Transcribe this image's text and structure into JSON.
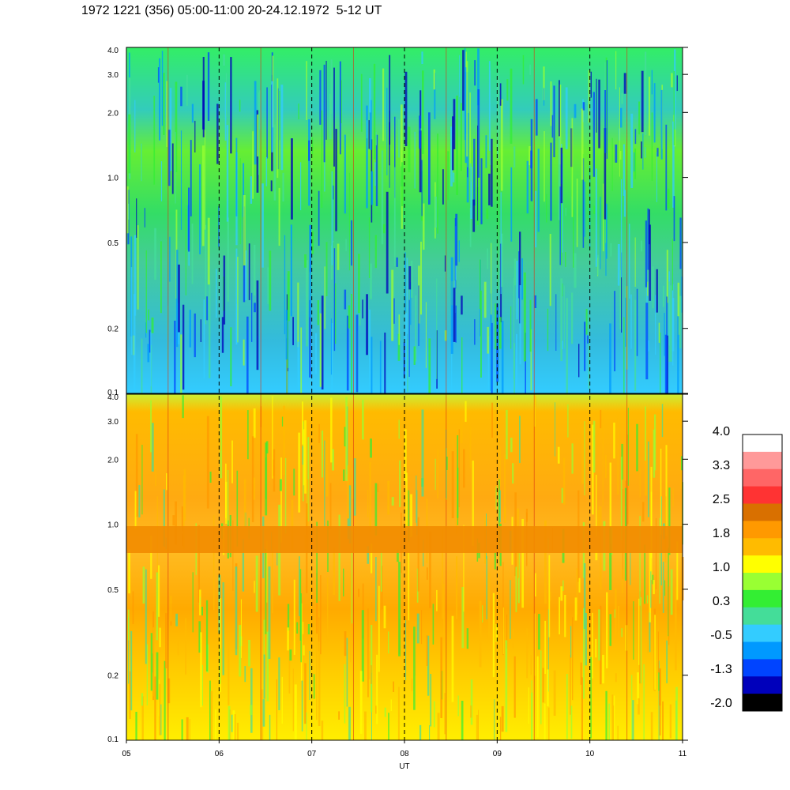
{
  "title": "1972 1221 (356) 05:00-11:00 20-24.12.1972  5-12 UT",
  "chart_data": {
    "type": "heatmap",
    "xlabel": "UT",
    "x_ticks": [
      "05",
      "06",
      "07",
      "08",
      "09",
      "10",
      "11"
    ],
    "x_range_hours": [
      5,
      11
    ],
    "dashed_vertical_lines_at_hours": [
      6,
      7,
      8,
      9,
      10
    ],
    "y_scale": "log",
    "y_range": [
      0.1,
      4.0
    ],
    "y_ticks": [
      "0.1",
      "0.2",
      "0.5",
      "1.0",
      "2.0",
      "3.0",
      "4.0"
    ],
    "panels": [
      {
        "name": "upper",
        "dominant_levels": [
          "-0.5",
          "0.3"
        ],
        "notes": "mostly cyan/green with blue streaks near 0.3-2.0"
      },
      {
        "name": "lower",
        "dominant_levels": [
          "1.0",
          "1.8"
        ],
        "band_at_y": 0.85,
        "notes": "orange/yellow with dark orange band near 0.8-0.9"
      }
    ],
    "colorbar": {
      "labels": [
        "4.0",
        "3.3",
        "2.5",
        "1.8",
        "1.0",
        "0.3",
        "-0.5",
        "-1.3",
        "-2.0"
      ],
      "colors_top_to_bottom": [
        "#ffffff",
        "#ff9999",
        "#ff6666",
        "#ff3333",
        "#d97000",
        "#ff9900",
        "#ffbb00",
        "#ffff00",
        "#99ff33",
        "#33ee33",
        "#44dd99",
        "#33ccff",
        "#0099ff",
        "#0044ff",
        "#0000bb",
        "#000000"
      ]
    }
  }
}
